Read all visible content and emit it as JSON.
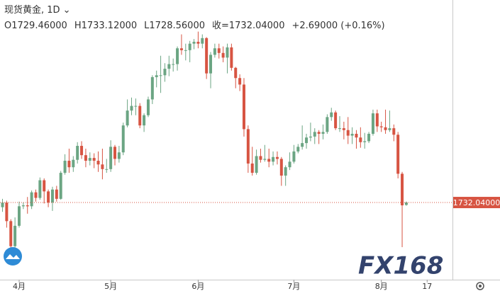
{
  "chart_data": {
    "type": "candlestick",
    "title": "现货黄金, 1D",
    "legend_values": [
      "O1729.46000",
      "H1733.12000",
      "L1728.56000",
      "收=1732.04000",
      "+2.69000 (+0.16%)"
    ],
    "watermark": "FX168",
    "categories": [
      null,
      null,
      null,
      null,
      "4月",
      null,
      null,
      null,
      null,
      null,
      null,
      null,
      null,
      null,
      null,
      null,
      null,
      null,
      null,
      null,
      null,
      null,
      null,
      null,
      null,
      null,
      "5月",
      null,
      null,
      null,
      null,
      null,
      null,
      null,
      null,
      null,
      null,
      null,
      null,
      null,
      null,
      null,
      null,
      null,
      null,
      null,
      null,
      "6月",
      null,
      null,
      null,
      null,
      null,
      null,
      null,
      null,
      null,
      null,
      null,
      null,
      null,
      null,
      null,
      null,
      null,
      null,
      null,
      null,
      null,
      null,
      "7月",
      null,
      null,
      null,
      null,
      null,
      null,
      null,
      null,
      null,
      null,
      null,
      null,
      null,
      null,
      null,
      null,
      null,
      null,
      null,
      null,
      "8月",
      null,
      null,
      null,
      null,
      null,
      null,
      null,
      null,
      null,
      null,
      "17"
    ],
    "open": [
      1727,
      1732,
      1712,
      1685,
      1707,
      1728,
      1729,
      1728,
      1743,
      1737,
      1756,
      1744,
      1732,
      1746,
      1736,
      1764,
      1777,
      1770,
      1778,
      1793,
      1783,
      1777,
      1780,
      1777,
      1773,
      1768,
      1768,
      1792,
      1779,
      1786,
      1815,
      1831,
      1836,
      1836,
      1815,
      1826,
      1843,
      1867,
      1869,
      1869,
      1876,
      1881,
      1881,
      1898,
      1896,
      1896,
      1903,
      1905,
      1903,
      1909,
      1871,
      1891,
      1898,
      1893,
      1888,
      1899,
      1877,
      1866,
      1859,
      1811,
      1774,
      1764,
      1782,
      1778,
      1779,
      1776,
      1781,
      1779,
      1761,
      1770,
      1776,
      1787,
      1792,
      1796,
      1802,
      1803,
      1808,
      1806,
      1808,
      1824,
      1829,
      1812,
      1812,
      1810,
      1804,
      1806,
      1802,
      1797,
      1798,
      1806,
      1828,
      1814,
      1813,
      1810,
      1812,
      1805,
      1763,
      1729.46,
      null,
      null,
      null,
      null,
      null
    ],
    "high": [
      1736,
      1734,
      1714,
      1716,
      1733,
      1732,
      1738,
      1745,
      1746,
      1759,
      1758,
      1746,
      1749,
      1750,
      1766,
      1784,
      1790,
      1782,
      1797,
      1798,
      1790,
      1786,
      1785,
      1787,
      1790,
      1779,
      1799,
      1794,
      1793,
      1818,
      1843,
      1845,
      1844,
      1839,
      1828,
      1846,
      1869,
      1874,
      1890,
      1882,
      1890,
      1887,
      1900,
      1913,
      1903,
      1906,
      1908,
      1916,
      1913,
      1910,
      1894,
      1903,
      1903,
      1900,
      1903,
      1903,
      1878,
      1870,
      1866,
      1815,
      1792,
      1789,
      1790,
      1794,
      1790,
      1787,
      1787,
      1781,
      1772,
      1786,
      1794,
      1795,
      1815,
      1806,
      1818,
      1812,
      1810,
      1816,
      1827,
      1834,
      1831,
      1825,
      1819,
      1824,
      1813,
      1810,
      1813,
      1807,
      1808,
      1832,
      1832,
      1819,
      1832,
      1831,
      1816,
      1808,
      1765,
      1733.12,
      null,
      null,
      null,
      null,
      null
    ],
    "low": [
      1722,
      1705,
      1680,
      1677,
      1705,
      1725,
      1720,
      1725,
      1733,
      1735,
      1731,
      1727,
      1723,
      1733,
      1735,
      1762,
      1764,
      1765,
      1774,
      1779,
      1770,
      1772,
      1769,
      1765,
      1757,
      1764,
      1765,
      1772,
      1775,
      1783,
      1813,
      1826,
      1826,
      1812,
      1808,
      1824,
      1838,
      1856,
      1850,
      1862,
      1868,
      1873,
      1874,
      1891,
      1885,
      1883,
      1897,
      1898,
      1898,
      1865,
      1855,
      1888,
      1887,
      1883,
      1871,
      1874,
      1855,
      1852,
      1803,
      1764,
      1761,
      1762,
      1775,
      1776,
      1770,
      1772,
      1773,
      1750,
      1750,
      1767,
      1774,
      1785,
      1789,
      1790,
      1798,
      1795,
      1795,
      1800,
      1806,
      1820,
      1810,
      1808,
      1800,
      1795,
      1795,
      1790,
      1791,
      1790,
      1796,
      1804,
      1808,
      1808,
      1806,
      1808,
      1798,
      1758,
      1684,
      1728.56,
      null,
      null,
      null,
      null,
      null
    ],
    "close": [
      1732,
      1712,
      1685,
      1707,
      1728,
      1729,
      1728,
      1743,
      1737,
      1756,
      1744,
      1732,
      1746,
      1736,
      1764,
      1777,
      1770,
      1778,
      1793,
      1783,
      1777,
      1780,
      1777,
      1773,
      1768,
      1768,
      1792,
      1779,
      1786,
      1815,
      1831,
      1836,
      1836,
      1815,
      1826,
      1843,
      1867,
      1869,
      1869,
      1876,
      1881,
      1881,
      1898,
      1896,
      1896,
      1903,
      1905,
      1903,
      1909,
      1871,
      1891,
      1898,
      1893,
      1888,
      1899,
      1877,
      1866,
      1859,
      1811,
      1774,
      1764,
      1782,
      1778,
      1779,
      1776,
      1781,
      1779,
      1761,
      1770,
      1776,
      1787,
      1792,
      1796,
      1802,
      1803,
      1808,
      1806,
      1808,
      1824,
      1829,
      1812,
      1812,
      1810,
      1804,
      1806,
      1802,
      1797,
      1798,
      1806,
      1828,
      1814,
      1813,
      1810,
      1812,
      1805,
      1763,
      1729,
      1732.04,
      null,
      null,
      null,
      null,
      null
    ],
    "up_color": "#6ba583",
    "down_color": "#d75442",
    "ylim": [
      1649,
      1950
    ],
    "last_price": {
      "value": 1732.04,
      "label": "1732.04000"
    }
  }
}
